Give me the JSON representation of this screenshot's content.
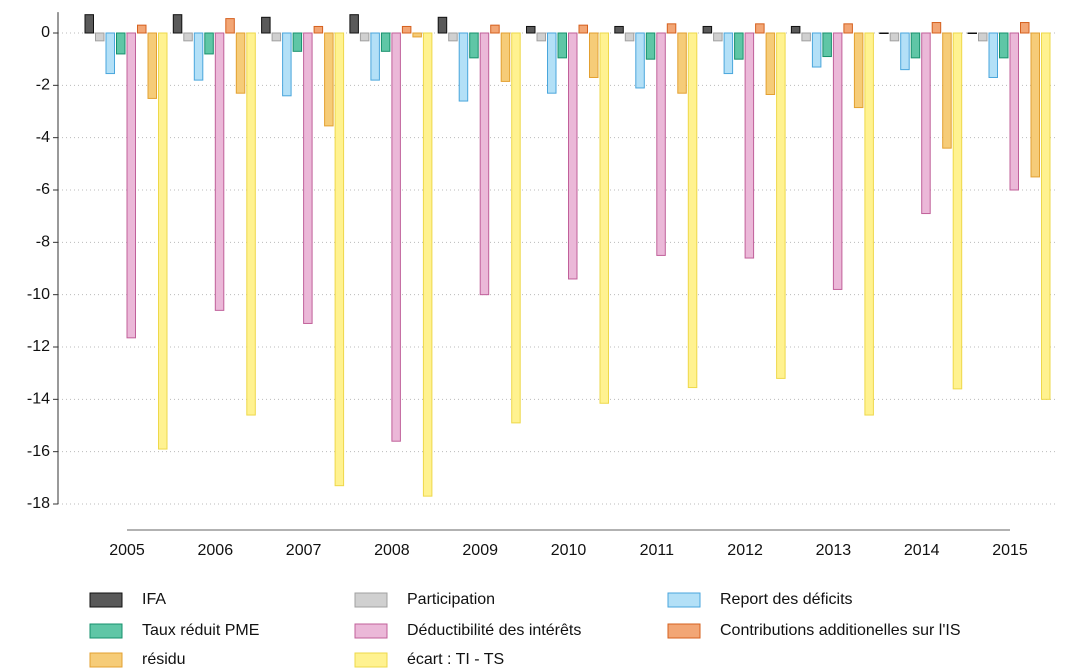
{
  "chart_data": {
    "type": "bar",
    "categories": [
      "2005",
      "2006",
      "2007",
      "2008",
      "2009",
      "2010",
      "2011",
      "2012",
      "2013",
      "2014",
      "2015"
    ],
    "series": [
      {
        "name": "IFA",
        "color": "#5a5a5a",
        "border": "#111111",
        "values": [
          0.7,
          0.7,
          0.6,
          0.7,
          0.6,
          0.25,
          0.25,
          0.25,
          0.25,
          0,
          0
        ]
      },
      {
        "name": "Participation",
        "color": "#d0d0d0",
        "border": "#a0a0a0",
        "values": [
          -0.3,
          -0.3,
          -0.3,
          -0.3,
          -0.3,
          -0.3,
          -0.3,
          -0.3,
          -0.3,
          -0.3,
          -0.3
        ]
      },
      {
        "name": "Report des déficits",
        "color": "#b3e0f7",
        "border": "#4aa6dc",
        "values": [
          -1.55,
          -1.8,
          -2.4,
          -1.8,
          -2.6,
          -2.3,
          -2.1,
          -1.55,
          -1.3,
          -1.4,
          -1.7
        ]
      },
      {
        "name": "Taux réduit PME",
        "color": "#5fc6a6",
        "border": "#16906c",
        "values": [
          -0.8,
          -0.8,
          -0.7,
          -0.7,
          -0.95,
          -0.95,
          -1.0,
          -1.0,
          -0.9,
          -0.95,
          -0.95
        ]
      },
      {
        "name": "Déductibilité des intérêts",
        "color": "#ebb8d8",
        "border": "#c0609a",
        "values": [
          -11.65,
          -10.6,
          -11.1,
          -15.6,
          -10.0,
          -9.4,
          -8.5,
          -8.6,
          -9.8,
          -6.9,
          -6.0
        ]
      },
      {
        "name": "Contributions additionelles sur l'IS",
        "color": "#f2a675",
        "border": "#d5601e",
        "values": [
          0.3,
          0.55,
          0.25,
          0.25,
          0.3,
          0.3,
          0.35,
          0.35,
          0.35,
          0.4,
          0.4
        ]
      },
      {
        "name": "résidu",
        "color": "#f6cc78",
        "border": "#e3a030",
        "values": [
          -2.5,
          -2.3,
          -3.55,
          -0.15,
          -1.85,
          -1.7,
          -2.3,
          -2.35,
          -2.85,
          -4.4,
          -5.5
        ]
      },
      {
        "name": "écart : TI - TS",
        "color": "#fff290",
        "border": "#eed84a",
        "values": [
          -15.9,
          -14.6,
          -17.3,
          -17.7,
          -14.9,
          -14.15,
          -13.55,
          -13.2,
          -14.6,
          -13.6,
          -14.0
        ]
      }
    ],
    "ylim": [
      -18.3,
      0.8
    ],
    "yticks": [
      0,
      -2,
      -4,
      -6,
      -8,
      -10,
      -12,
      -14,
      -16,
      -18
    ],
    "grid": true,
    "legend": "bottom"
  }
}
